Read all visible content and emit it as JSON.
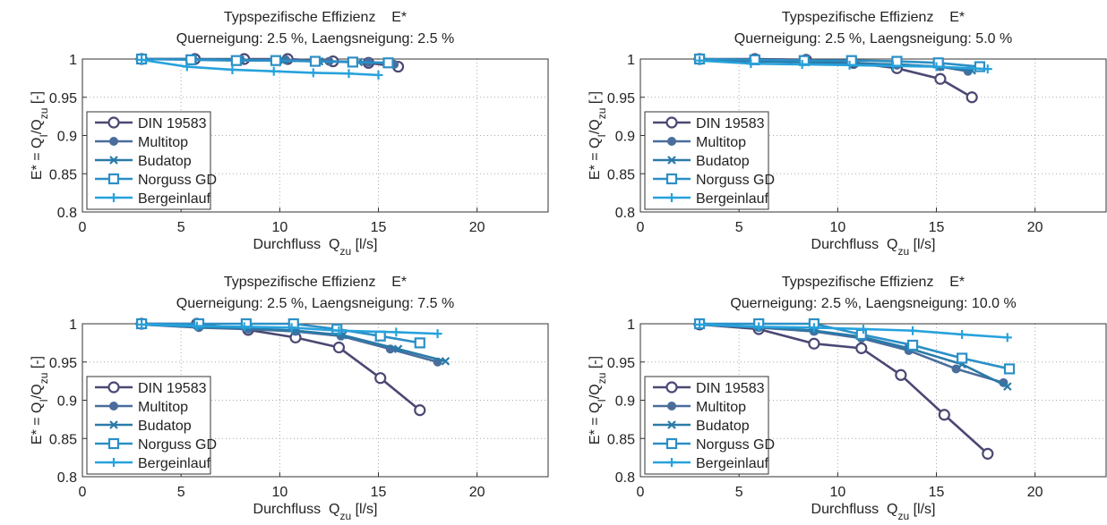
{
  "chart_data": [
    {
      "type": "line",
      "title": "Typspezifische Effizienz    E*",
      "subtitle": "Querneigung: 2.5 %, Laengsneigung: 2.5 %",
      "xlabel": [
        {
          "text": "Durchfluss  Q",
          "sub": false
        },
        {
          "text": "zu",
          "sub": true
        },
        {
          "text": " [l/s]",
          "sub": false
        }
      ],
      "ylabel": [
        {
          "text": "E* = Q",
          "sub": false
        },
        {
          "text": "I",
          "sub": true
        },
        {
          "text": "/Q",
          "sub": false
        },
        {
          "text": "zu",
          "sub": true
        },
        {
          "text": " [-]",
          "sub": false
        }
      ],
      "xlim": [
        0,
        23.6
      ],
      "xticks": [
        0,
        5,
        10,
        15,
        20
      ],
      "ylim": [
        0.8,
        1
      ],
      "yticks": [
        0.8,
        0.85,
        0.9,
        0.95,
        1
      ],
      "grid": true,
      "legend": "lower left",
      "series": [
        {
          "name": "DIN 19583",
          "color": "#4b4873",
          "marker": "circle-open",
          "x": [
            3,
            5.7,
            8.2,
            10.4,
            12.7,
            14.5,
            16.0
          ],
          "values": [
            1,
            1,
            1,
            1,
            0.997,
            0.995,
            0.99
          ]
        },
        {
          "name": "Multitop",
          "color": "#4a6d9c",
          "marker": "circle",
          "x": [
            3,
            5.6,
            8.0,
            10.3,
            12.5,
            14.5,
            15.8
          ],
          "values": [
            1,
            1,
            0.999,
            0.999,
            0.997,
            0.996,
            0.993
          ]
        },
        {
          "name": "Budatop",
          "color": "#2a7aa8",
          "marker": "x",
          "x": [
            3,
            5.6,
            8.0,
            10.2,
            12.0,
            14.0,
            15.6
          ],
          "values": [
            1,
            1,
            0.999,
            0.998,
            0.997,
            0.996,
            0.995
          ]
        },
        {
          "name": "Norguss GD",
          "color": "#2b8fc6",
          "marker": "square-open",
          "x": [
            3,
            5.5,
            7.8,
            9.8,
            11.8,
            13.7,
            15.5
          ],
          "values": [
            1,
            0.999,
            0.998,
            0.998,
            0.997,
            0.996,
            0.995
          ]
        },
        {
          "name": "Bergeinlauf",
          "color": "#27a2dc",
          "marker": "plus",
          "x": [
            3,
            5.3,
            7.6,
            9.7,
            11.7,
            13.5,
            15.0
          ],
          "values": [
            0.999,
            0.99,
            0.986,
            0.984,
            0.982,
            0.981,
            0.979
          ]
        }
      ]
    },
    {
      "type": "line",
      "title": "Typspezifische Effizienz    E*",
      "subtitle": "Querneigung: 2.5 %, Laengsneigung: 5.0 %",
      "xlabel": [
        {
          "text": "Durchfluss  Q",
          "sub": false
        },
        {
          "text": "zu",
          "sub": true
        },
        {
          "text": " [l/s]",
          "sub": false
        }
      ],
      "ylabel": [
        {
          "text": "E* = Q",
          "sub": false
        },
        {
          "text": "I",
          "sub": true
        },
        {
          "text": "/Q",
          "sub": false
        },
        {
          "text": "zu",
          "sub": true
        },
        {
          "text": " [-]",
          "sub": false
        }
      ],
      "xlim": [
        0,
        23.6
      ],
      "xticks": [
        0,
        5,
        10,
        15,
        20
      ],
      "ylim": [
        0.8,
        1
      ],
      "yticks": [
        0.8,
        0.85,
        0.9,
        0.95,
        1
      ],
      "grid": true,
      "legend": "lower left",
      "series": [
        {
          "name": "DIN 19583",
          "color": "#4b4873",
          "marker": "circle-open",
          "x": [
            3,
            5.8,
            8.4,
            10.8,
            13.0,
            15.2,
            16.8
          ],
          "values": [
            1,
            1,
            0.999,
            0.995,
            0.988,
            0.974,
            0.95
          ]
        },
        {
          "name": "Multitop",
          "color": "#4a6d9c",
          "marker": "circle",
          "x": [
            3,
            5.8,
            8.4,
            10.8,
            13.0,
            15.2,
            16.6
          ],
          "values": [
            1,
            0.998,
            0.997,
            0.995,
            0.992,
            0.99,
            0.984
          ]
        },
        {
          "name": "Budatop",
          "color": "#2a7aa8",
          "marker": "x",
          "x": [
            3,
            5.8,
            8.4,
            10.8,
            13.0,
            15.2,
            16.8
          ],
          "values": [
            0.999,
            0.997,
            0.996,
            0.994,
            0.993,
            0.99,
            0.985
          ]
        },
        {
          "name": "Norguss GD",
          "color": "#2b8fc6",
          "marker": "square-open",
          "x": [
            3,
            5.8,
            8.3,
            10.7,
            13.0,
            15.1,
            17.2
          ],
          "values": [
            1,
            0.999,
            0.998,
            0.998,
            0.997,
            0.995,
            0.99
          ]
        },
        {
          "name": "Bergeinlauf",
          "color": "#27a2dc",
          "marker": "plus",
          "x": [
            3,
            5.6,
            8.2,
            10.6,
            12.8,
            15.0,
            17.6
          ],
          "values": [
            0.998,
            0.994,
            0.993,
            0.992,
            0.991,
            0.99,
            0.987
          ]
        }
      ]
    },
    {
      "type": "line",
      "title": "Typspezifische Effizienz    E*",
      "subtitle": "Querneigung: 2.5 %, Laengsneigung: 7.5 %",
      "xlabel": [
        {
          "text": "Durchfluss  Q",
          "sub": false
        },
        {
          "text": "zu",
          "sub": true
        },
        {
          "text": " [l/s]",
          "sub": false
        }
      ],
      "ylabel": [
        {
          "text": "E* = Q",
          "sub": false
        },
        {
          "text": "I",
          "sub": true
        },
        {
          "text": "/Q",
          "sub": false
        },
        {
          "text": "zu",
          "sub": true
        },
        {
          "text": " [-]",
          "sub": false
        }
      ],
      "xlim": [
        0,
        23.6
      ],
      "xticks": [
        0,
        5,
        10,
        15,
        20
      ],
      "ylim": [
        0.8,
        1
      ],
      "yticks": [
        0.8,
        0.85,
        0.9,
        0.95,
        1
      ],
      "grid": true,
      "legend": "lower left",
      "series": [
        {
          "name": "DIN 19583",
          "color": "#4b4873",
          "marker": "circle-open",
          "x": [
            3,
            5.8,
            8.4,
            10.8,
            13.0,
            15.1,
            17.1
          ],
          "values": [
            1,
            1,
            0.992,
            0.982,
            0.969,
            0.929,
            0.887
          ]
        },
        {
          "name": "Multitop",
          "color": "#4a6d9c",
          "marker": "circle",
          "x": [
            3,
            5.9,
            8.4,
            10.8,
            13.1,
            15.6,
            18.0
          ],
          "values": [
            0.999,
            0.995,
            0.993,
            0.99,
            0.984,
            0.967,
            0.95
          ]
        },
        {
          "name": "Budatop",
          "color": "#2a7aa8",
          "marker": "x",
          "x": [
            3,
            5.9,
            8.4,
            10.8,
            13.2,
            16.0,
            18.4
          ],
          "values": [
            0.999,
            0.996,
            0.994,
            0.991,
            0.985,
            0.967,
            0.951
          ]
        },
        {
          "name": "Norguss GD",
          "color": "#2b8fc6",
          "marker": "square-open",
          "x": [
            3,
            5.9,
            8.3,
            10.7,
            12.9,
            15.1,
            17.1
          ],
          "values": [
            1,
            1,
            1,
            1,
            0.993,
            0.984,
            0.975
          ]
        },
        {
          "name": "Bergeinlauf",
          "color": "#27a2dc",
          "marker": "plus",
          "x": [
            3,
            5.8,
            8.2,
            10.6,
            13.0,
            15.9,
            18.0
          ],
          "values": [
            0.999,
            0.997,
            0.996,
            0.995,
            0.991,
            0.989,
            0.987
          ]
        }
      ]
    },
    {
      "type": "line",
      "title": "Typspezifische Effizienz    E*",
      "subtitle": "Querneigung: 2.5 %, Laengsneigung: 10.0 %",
      "xlabel": [
        {
          "text": "Durchfluss  Q",
          "sub": false
        },
        {
          "text": "zu",
          "sub": true
        },
        {
          "text": " [l/s]",
          "sub": false
        }
      ],
      "ylabel": [
        {
          "text": "E* = Q",
          "sub": false
        },
        {
          "text": "I",
          "sub": true
        },
        {
          "text": "/Q",
          "sub": false
        },
        {
          "text": "zu",
          "sub": true
        },
        {
          "text": " [-]",
          "sub": false
        }
      ],
      "xlim": [
        0,
        23.6
      ],
      "xticks": [
        0,
        5,
        10,
        15,
        20
      ],
      "ylim": [
        0.8,
        1
      ],
      "yticks": [
        0.8,
        0.85,
        0.9,
        0.95,
        1
      ],
      "grid": true,
      "legend": "lower left",
      "series": [
        {
          "name": "DIN 19583",
          "color": "#4b4873",
          "marker": "circle-open",
          "x": [
            3,
            6.0,
            8.8,
            11.2,
            13.2,
            15.4,
            17.6
          ],
          "values": [
            0.999,
            0.993,
            0.974,
            0.968,
            0.933,
            0.881,
            0.83
          ]
        },
        {
          "name": "Multitop",
          "color": "#4a6d9c",
          "marker": "circle",
          "x": [
            3,
            6.0,
            8.8,
            11.2,
            13.6,
            16.0,
            18.4
          ],
          "values": [
            0.999,
            0.995,
            0.99,
            0.981,
            0.965,
            0.941,
            0.923
          ]
        },
        {
          "name": "Budatop",
          "color": "#2a7aa8",
          "marker": "x",
          "x": [
            3,
            6.0,
            8.8,
            11.2,
            13.6,
            16.3,
            18.6
          ],
          "values": [
            0.999,
            0.996,
            0.991,
            0.983,
            0.968,
            0.947,
            0.918
          ]
        },
        {
          "name": "Norguss GD",
          "color": "#2b8fc6",
          "marker": "square-open",
          "x": [
            3,
            6.0,
            8.8,
            11.2,
            13.8,
            16.3,
            18.7
          ],
          "values": [
            1,
            1,
            1,
            0.986,
            0.972,
            0.955,
            0.941
          ]
        },
        {
          "name": "Bergeinlauf",
          "color": "#27a2dc",
          "marker": "plus",
          "x": [
            3,
            6.0,
            8.8,
            11.3,
            13.8,
            16.3,
            18.6
          ],
          "values": [
            0.999,
            0.996,
            0.995,
            0.993,
            0.991,
            0.986,
            0.982
          ]
        }
      ]
    }
  ]
}
